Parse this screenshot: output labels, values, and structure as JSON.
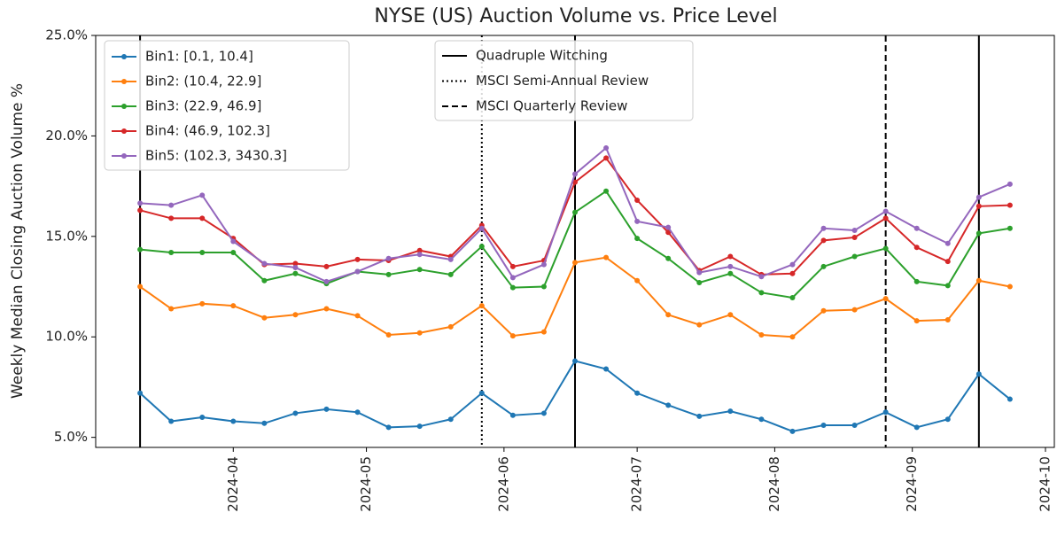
{
  "chart_data": {
    "type": "line",
    "title": "NYSE (US) Auction Volume vs. Price Level",
    "y_label": "Weekly Median Closing Auction Volume %",
    "x": [
      "2024-03-11",
      "2024-03-18",
      "2024-03-25",
      "2024-04-01",
      "2024-04-08",
      "2024-04-15",
      "2024-04-22",
      "2024-04-29",
      "2024-05-06",
      "2024-05-13",
      "2024-05-20",
      "2024-05-27",
      "2024-06-03",
      "2024-06-10",
      "2024-06-17",
      "2024-06-24",
      "2024-07-01",
      "2024-07-08",
      "2024-07-15",
      "2024-07-22",
      "2024-07-29",
      "2024-08-05",
      "2024-08-12",
      "2024-08-19",
      "2024-08-26",
      "2024-09-02",
      "2024-09-09",
      "2024-09-16",
      "2024-09-23"
    ],
    "series": [
      {
        "name": "Bin1: [0.1, 10.4]",
        "color": "#1f77b4",
        "values": [
          7.2,
          5.8,
          6.0,
          5.8,
          5.7,
          6.2,
          6.4,
          6.25,
          5.5,
          5.55,
          5.9,
          7.2,
          6.1,
          6.2,
          8.8,
          8.4,
          7.2,
          6.6,
          6.05,
          6.3,
          5.9,
          5.3,
          5.6,
          5.6,
          6.25,
          5.5,
          5.9,
          8.15,
          6.9
        ]
      },
      {
        "name": "Bin2: (10.4, 22.9]",
        "color": "#ff7f0e",
        "values": [
          12.5,
          11.4,
          11.65,
          11.55,
          10.95,
          11.1,
          11.4,
          11.05,
          10.1,
          10.2,
          10.5,
          11.55,
          10.05,
          10.25,
          13.7,
          13.95,
          12.8,
          11.1,
          10.6,
          11.1,
          10.1,
          10.0,
          11.3,
          11.35,
          11.9,
          10.8,
          10.85,
          12.8,
          12.5
        ]
      },
      {
        "name": "Bin3: (22.9, 46.9]",
        "color": "#2ca02c",
        "values": [
          14.35,
          14.2,
          14.2,
          14.2,
          12.8,
          13.15,
          12.65,
          13.25,
          13.1,
          13.35,
          13.1,
          14.5,
          12.45,
          12.5,
          16.2,
          17.25,
          14.9,
          13.9,
          12.7,
          13.15,
          12.2,
          11.95,
          13.5,
          14.0,
          14.4,
          12.75,
          12.55,
          15.15,
          15.4
        ]
      },
      {
        "name": "Bin4: (46.9, 102.3]",
        "color": "#d62728",
        "values": [
          16.3,
          15.9,
          15.9,
          14.9,
          13.6,
          13.65,
          13.5,
          13.85,
          13.8,
          14.3,
          14.0,
          15.55,
          13.5,
          13.8,
          17.7,
          18.9,
          16.8,
          15.2,
          13.3,
          14.0,
          13.1,
          13.15,
          14.8,
          14.95,
          15.9,
          14.45,
          13.75,
          16.5,
          16.55
        ]
      },
      {
        "name": "Bin5: (102.3, 3430.3]",
        "color": "#9467bd",
        "values": [
          16.65,
          16.55,
          17.05,
          14.75,
          13.65,
          13.45,
          12.75,
          13.25,
          13.9,
          14.1,
          13.85,
          15.4,
          12.95,
          13.6,
          18.1,
          19.4,
          15.75,
          15.45,
          13.2,
          13.5,
          13.0,
          13.6,
          15.4,
          15.3,
          16.25,
          15.4,
          14.65,
          16.95,
          17.6
        ]
      }
    ],
    "events": [
      {
        "name": "Quadruple Witching",
        "style": "solid",
        "color": "#000000",
        "dates": [
          "2024-03-11",
          "2024-06-17",
          "2024-09-16"
        ]
      },
      {
        "name": "MSCI Semi-Annual Review",
        "style": "dotted",
        "color": "#000000",
        "dates": [
          "2024-05-27"
        ]
      },
      {
        "name": "MSCI Quarterly Review",
        "style": "dashed",
        "color": "#000000",
        "dates": [
          "2024-08-26"
        ]
      }
    ],
    "xlim": [
      "2024-03-01",
      "2024-10-03"
    ],
    "xticks": [
      {
        "value": "2024-04-01",
        "label": "2024-04"
      },
      {
        "value": "2024-05-01",
        "label": "2024-05"
      },
      {
        "value": "2024-06-01",
        "label": "2024-06"
      },
      {
        "value": "2024-07-01",
        "label": "2024-07"
      },
      {
        "value": "2024-08-01",
        "label": "2024-08"
      },
      {
        "value": "2024-09-01",
        "label": "2024-09"
      },
      {
        "value": "2024-10-01",
        "label": "2024-10"
      }
    ],
    "ylim": [
      4.5,
      25.0
    ],
    "yticks": [
      {
        "value": 5,
        "label": "5.0%"
      },
      {
        "value": 10,
        "label": "10.0%"
      },
      {
        "value": 15,
        "label": "15.0%"
      },
      {
        "value": 20,
        "label": "20.0%"
      },
      {
        "value": 25,
        "label": "25.0%"
      }
    ],
    "legend": "upper left",
    "grid": false
  }
}
